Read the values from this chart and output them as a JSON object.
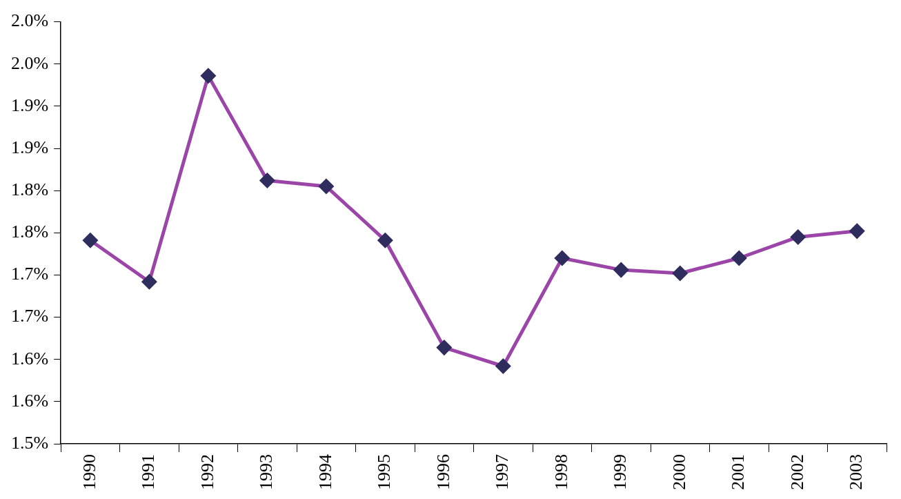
{
  "chart_data": {
    "type": "line",
    "categories": [
      "1990",
      "1991",
      "1992",
      "1993",
      "1994",
      "1995",
      "1996",
      "1997",
      "1998",
      "1999",
      "2000",
      "2001",
      "2002",
      "2003"
    ],
    "series": [
      {
        "color": "#9b45a8",
        "values": [
          1.741,
          1.692,
          1.936,
          1.812,
          1.805,
          1.741,
          1.614,
          1.592,
          1.72,
          1.706,
          1.702,
          1.72,
          1.745,
          1.752
        ]
      }
    ],
    "ylim": [
      1.5,
      2.0
    ],
    "yticks": [
      {
        "value": 1.5,
        "label": "1.5%"
      },
      {
        "value": 1.55,
        "label": "1.6%"
      },
      {
        "value": 1.6,
        "label": "1.6%"
      },
      {
        "value": 1.65,
        "label": "1.7%"
      },
      {
        "value": 1.7,
        "label": "1.7%"
      },
      {
        "value": 1.75,
        "label": "1.8%"
      },
      {
        "value": 1.8,
        "label": "1.8%"
      },
      {
        "value": 1.85,
        "label": "1.9%"
      },
      {
        "value": 1.9,
        "label": "1.9%"
      },
      {
        "value": 1.95,
        "label": "2.0%"
      },
      {
        "value": 2.0,
        "label": "2.0%"
      }
    ],
    "grid": false,
    "legend": false,
    "marker": "diamond",
    "line_style": "solid"
  }
}
